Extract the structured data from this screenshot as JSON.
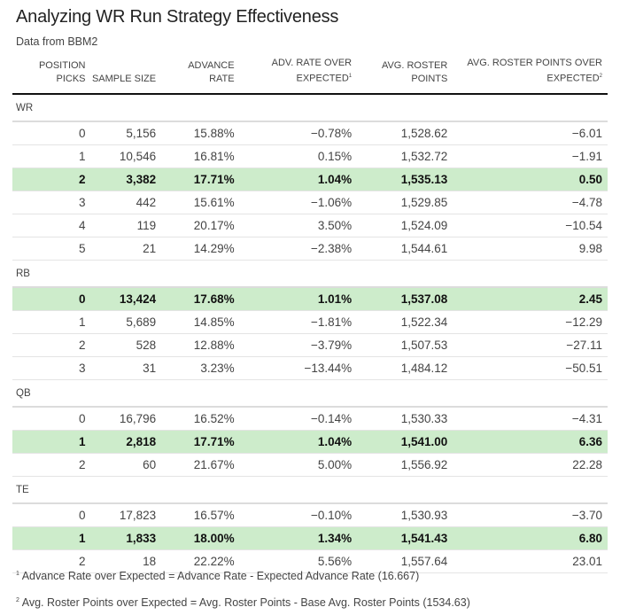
{
  "title": "Analyzing WR Run Strategy Effectiveness",
  "subtitle": "Data from BBM2",
  "highlight_color": "#cdeccb",
  "chart_data": {
    "type": "table",
    "title": "Analyzing WR Run Strategy Effectiveness",
    "columns": [
      {
        "label": "POSITION PICKS",
        "sup": ""
      },
      {
        "label": "SAMPLE SIZE",
        "sup": ""
      },
      {
        "label": "ADVANCE RATE",
        "sup": ""
      },
      {
        "label": "ADV. RATE OVER EXPECTED",
        "sup": "1"
      },
      {
        "label": "AVG. ROSTER POINTS",
        "sup": ""
      },
      {
        "label": "AVG. ROSTER POINTS OVER EXPECTED",
        "sup": "2"
      }
    ],
    "groups": [
      {
        "name": "WR",
        "rows": [
          {
            "cells": [
              "0",
              "5,156",
              "15.88%",
              "−0.78%",
              "1,528.62",
              "−6.01"
            ],
            "highlight": false
          },
          {
            "cells": [
              "1",
              "10,546",
              "16.81%",
              "0.15%",
              "1,532.72",
              "−1.91"
            ],
            "highlight": false
          },
          {
            "cells": [
              "2",
              "3,382",
              "17.71%",
              "1.04%",
              "1,535.13",
              "0.50"
            ],
            "highlight": true
          },
          {
            "cells": [
              "3",
              "442",
              "15.61%",
              "−1.06%",
              "1,529.85",
              "−4.78"
            ],
            "highlight": false
          },
          {
            "cells": [
              "4",
              "119",
              "20.17%",
              "3.50%",
              "1,524.09",
              "−10.54"
            ],
            "highlight": false
          },
          {
            "cells": [
              "5",
              "21",
              "14.29%",
              "−2.38%",
              "1,544.61",
              "9.98"
            ],
            "highlight": false
          }
        ]
      },
      {
        "name": "RB",
        "rows": [
          {
            "cells": [
              "0",
              "13,424",
              "17.68%",
              "1.01%",
              "1,537.08",
              "2.45"
            ],
            "highlight": true
          },
          {
            "cells": [
              "1",
              "5,689",
              "14.85%",
              "−1.81%",
              "1,522.34",
              "−12.29"
            ],
            "highlight": false
          },
          {
            "cells": [
              "2",
              "528",
              "12.88%",
              "−3.79%",
              "1,507.53",
              "−27.11"
            ],
            "highlight": false
          },
          {
            "cells": [
              "3",
              "31",
              "3.23%",
              "−13.44%",
              "1,484.12",
              "−50.51"
            ],
            "highlight": false
          }
        ]
      },
      {
        "name": "QB",
        "rows": [
          {
            "cells": [
              "0",
              "16,796",
              "16.52%",
              "−0.14%",
              "1,530.33",
              "−4.31"
            ],
            "highlight": false
          },
          {
            "cells": [
              "1",
              "2,818",
              "17.71%",
              "1.04%",
              "1,541.00",
              "6.36"
            ],
            "highlight": true
          },
          {
            "cells": [
              "2",
              "60",
              "21.67%",
              "5.00%",
              "1,556.92",
              "22.28"
            ],
            "highlight": false
          }
        ]
      },
      {
        "name": "TE",
        "rows": [
          {
            "cells": [
              "0",
              "17,823",
              "16.57%",
              "−0.10%",
              "1,530.93",
              "−3.70"
            ],
            "highlight": false
          },
          {
            "cells": [
              "1",
              "1,833",
              "18.00%",
              "1.34%",
              "1,541.43",
              "6.80"
            ],
            "highlight": true
          },
          {
            "cells": [
              "2",
              "18",
              "22.22%",
              "5.56%",
              "1,557.64",
              "23.01"
            ],
            "highlight": false
          }
        ]
      }
    ]
  },
  "footnotes": [
    {
      "sup": "1",
      "text": "Advance Rate over Expected = Advance Rate - Expected Advance Rate (16.667)"
    },
    {
      "sup": "2",
      "text": "Avg. Roster Points over Expected = Avg. Roster Points - Base Avg. Roster Points (1534.63)"
    }
  ]
}
